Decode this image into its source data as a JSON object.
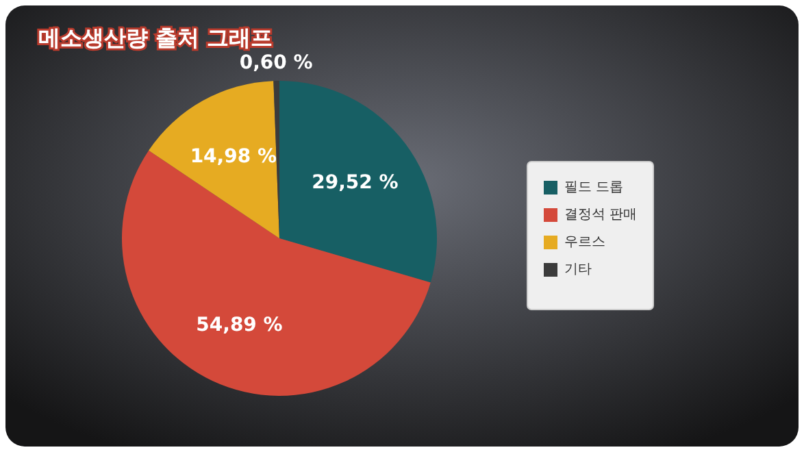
{
  "chart_data": {
    "type": "pie",
    "title": "메소생산량 출처 그래프",
    "categories": [
      "필드 드롭",
      "결정석 판매",
      "우르스",
      "기타"
    ],
    "values": [
      29.52,
      54.89,
      14.98,
      0.6
    ],
    "colors": [
      "#175f64",
      "#d4493a",
      "#e6ab22",
      "#3b3b3b"
    ],
    "value_labels": [
      "29,52 %",
      "54,89 %",
      "14,98 %",
      "0,60 %"
    ],
    "legend": "right"
  }
}
